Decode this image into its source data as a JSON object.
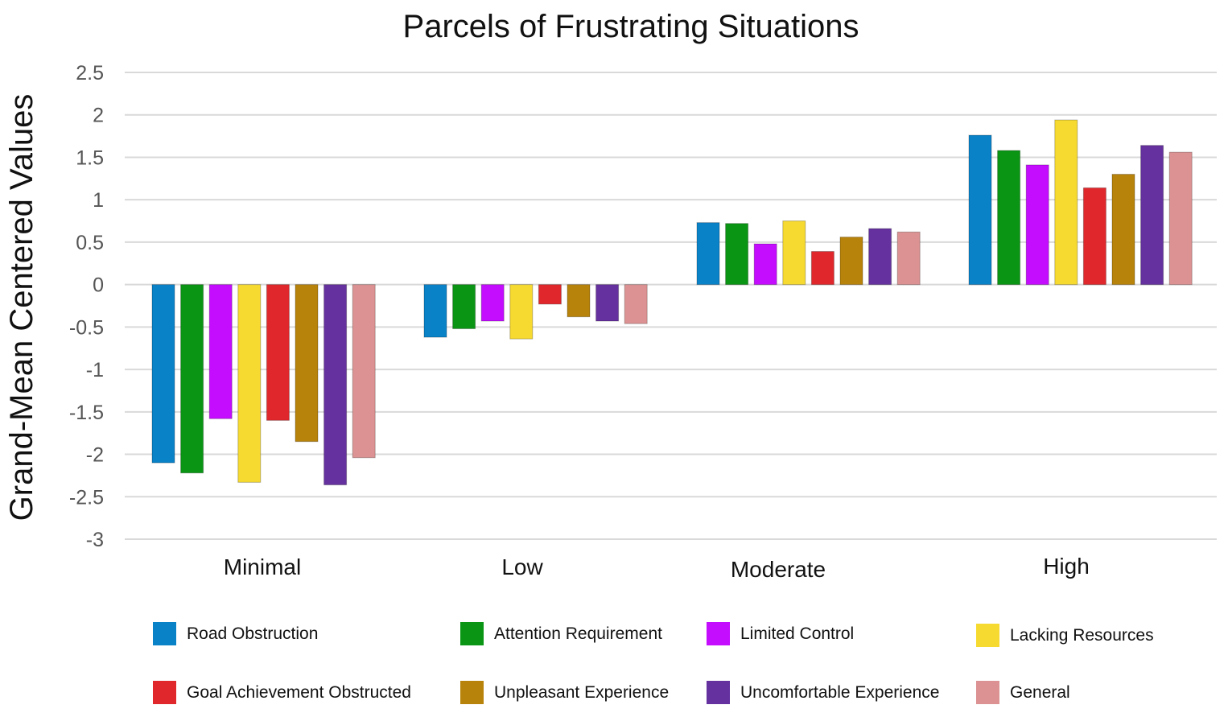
{
  "chart_data": {
    "type": "bar",
    "title": "Parcels of Frustrating Situations",
    "xlabel": "",
    "ylabel": "Grand-Mean Centered Values",
    "ylim": [
      -3,
      2.5
    ],
    "yticks": [
      2.5,
      2,
      1.5,
      1,
      0.5,
      0,
      -0.5,
      -1,
      -1.5,
      -2,
      -2.5,
      -3
    ],
    "ytick_labels": [
      "2.5",
      "2",
      "1.5",
      "1",
      "0.5",
      "0",
      "-0.5",
      "-1",
      "-1.5",
      "-2",
      "-2.5",
      "-3"
    ],
    "grid": true,
    "legend_position": "bottom",
    "categories": [
      "Minimal",
      "Low",
      "Moderate",
      "High"
    ],
    "series": [
      {
        "name": "Road Obstruction",
        "color": "#0A82C8",
        "values": [
          -2.1,
          -0.62,
          0.73,
          1.76
        ]
      },
      {
        "name": "Attention Requirement",
        "color": "#0A9514",
        "values": [
          -2.22,
          -0.52,
          0.72,
          1.58
        ]
      },
      {
        "name": "Limited Control",
        "color": "#C40CFF",
        "values": [
          -1.58,
          -0.43,
          0.48,
          1.41
        ]
      },
      {
        "name": "Lacking Resources",
        "color": "#F7DA30",
        "values": [
          -2.33,
          -0.64,
          0.75,
          1.94
        ]
      },
      {
        "name": "Goal Achievement Obstructed",
        "color": "#E0282C",
        "values": [
          -1.6,
          -0.23,
          0.39,
          1.14
        ]
      },
      {
        "name": "Unpleasant Experience",
        "color": "#B8830A",
        "values": [
          -1.85,
          -0.38,
          0.56,
          1.3
        ]
      },
      {
        "name": "Uncomfortable Experience",
        "color": "#65319E",
        "values": [
          -2.36,
          -0.43,
          0.66,
          1.64
        ]
      },
      {
        "name": "General",
        "color": "#DC9292",
        "values": [
          -2.04,
          -0.46,
          0.62,
          1.56
        ]
      }
    ]
  }
}
